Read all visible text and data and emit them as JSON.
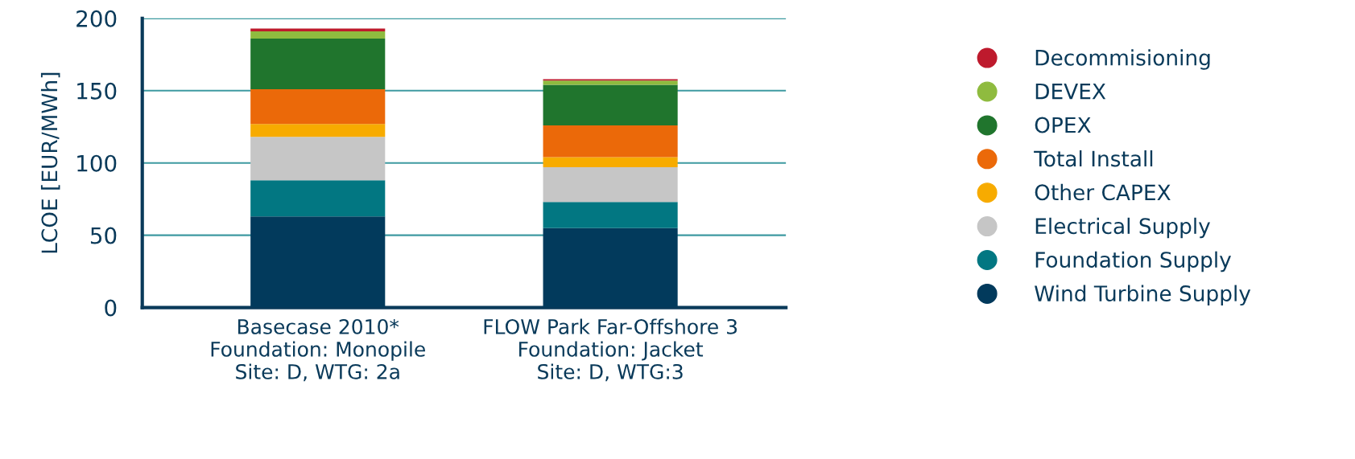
{
  "chart_data": {
    "type": "bar",
    "stacked": true,
    "ylabel": "LCOE [EUR/MWh]",
    "categories": [
      "Basecase 2010*\nFoundation: Monopile\nSite: D, WTG: 2a",
      "FLOW Park Far-Offshore 3\nFoundation: Jacket\nSite: D, WTG:3"
    ],
    "series": [
      {
        "name": "Wind Turbine Supply",
        "color": "#023a5c",
        "values": [
          63,
          55
        ]
      },
      {
        "name": "Foundation Supply",
        "color": "#027782",
        "values": [
          25,
          18
        ]
      },
      {
        "name": "Electrical Supply",
        "color": "#c6c6c6",
        "values": [
          30,
          24
        ]
      },
      {
        "name": "Other CAPEX",
        "color": "#f7ab00",
        "values": [
          9,
          7
        ]
      },
      {
        "name": "Total Install",
        "color": "#eb6909",
        "values": [
          24,
          22
        ]
      },
      {
        "name": "OPEX",
        "color": "#20752d",
        "values": [
          35,
          28
        ]
      },
      {
        "name": "DEVEX",
        "color": "#8fbb3f",
        "values": [
          5,
          3
        ]
      },
      {
        "name": "Decommisioning",
        "color": "#be1a2d",
        "values": [
          2,
          1
        ]
      }
    ],
    "ylim": [
      0,
      200
    ],
    "yticks": [
      0,
      50,
      100,
      150,
      200
    ],
    "grid": "y",
    "legend": "right"
  }
}
